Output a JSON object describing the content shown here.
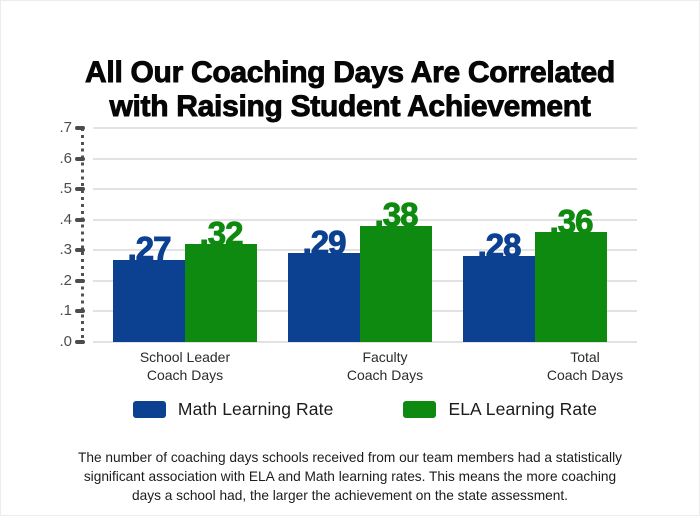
{
  "title": {
    "line1": "All Our Coaching Days Are Correlated",
    "line2": "with Raising Student Achievement"
  },
  "chart_data": {
    "type": "bar",
    "title": "All Our Coaching Days Are Correlated with Raising Student Achievement",
    "categories": [
      "School Leader Coach Days",
      "Faculty Coach Days",
      "Total Coach Days"
    ],
    "category_lines": [
      [
        "School Leader",
        "Coach Days"
      ],
      [
        "Faculty",
        "Coach Days"
      ],
      [
        "Total",
        "Coach Days"
      ]
    ],
    "series": [
      {
        "name": "Math Learning Rate",
        "color": "#0c4191",
        "values": [
          0.27,
          0.29,
          0.28
        ],
        "value_labels": [
          ".27",
          ".29",
          ".28"
        ]
      },
      {
        "name": "ELA Learning Rate",
        "color": "#0f8a10",
        "values": [
          0.32,
          0.38,
          0.36
        ],
        "value_labels": [
          ".32",
          ".38",
          ".36"
        ]
      }
    ],
    "xlabel": "",
    "ylabel": "",
    "ylim": [
      0,
      0.7
    ],
    "ytick_labels": [
      ".0",
      ".1",
      ".2",
      ".3",
      ".4",
      ".5",
      ".6",
      ".7"
    ],
    "grid": true,
    "legend_position": "bottom"
  },
  "axis": {
    "tick_color": "#4c4c4c",
    "label_color": "#4c4c4c",
    "gridline_color": "#e2e2e2"
  },
  "legend": {
    "items": [
      {
        "label": "Math Learning Rate",
        "color": "#0c4191"
      },
      {
        "label": "ELA Learning Rate",
        "color": "#0f8a10"
      }
    ]
  },
  "footnote": {
    "lines": [
      "The number of coaching days schools received from our team members had a statistically",
      "significant association with ELA and Math learning rates. This means the more coaching",
      "days a school had, the larger the achievement on the state assessment."
    ]
  }
}
